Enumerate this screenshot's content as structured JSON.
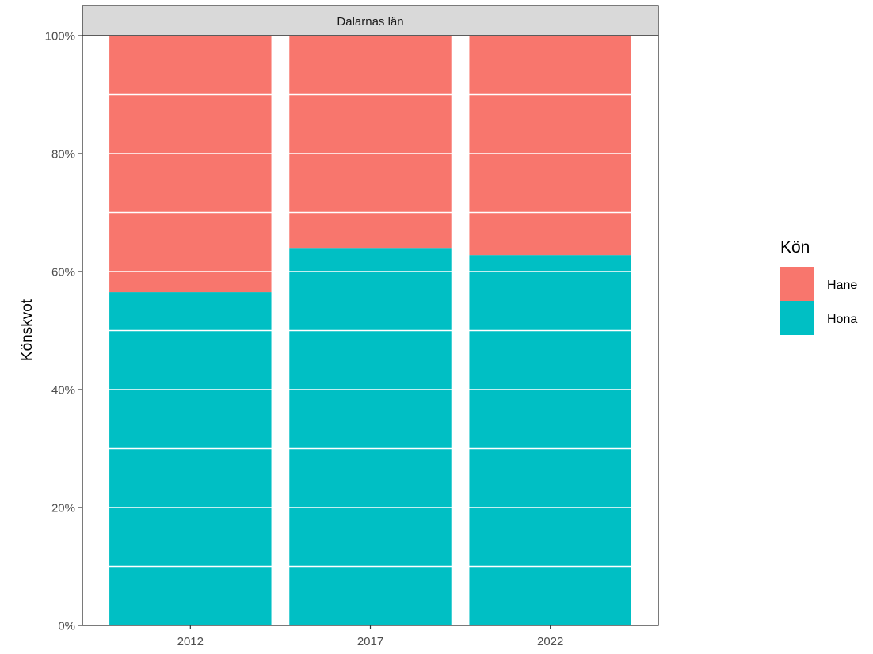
{
  "chart_data": {
    "type": "bar",
    "stacked": true,
    "percent_stacked": true,
    "facet_title": "Dalarnas län",
    "xlabel": "",
    "ylabel": "Könskvot",
    "categories": [
      "2012",
      "2017",
      "2022"
    ],
    "series": [
      {
        "name": "Hona",
        "color": "#00BFC4",
        "values": [
          0.565,
          0.64,
          0.628
        ]
      },
      {
        "name": "Hane",
        "color": "#F8766D",
        "values": [
          0.435,
          0.36,
          0.372
        ]
      }
    ],
    "ylim": [
      0,
      1
    ],
    "yticks": [
      0,
      0.2,
      0.4,
      0.6,
      0.8,
      1.0
    ],
    "ytick_labels": [
      "0%",
      "20%",
      "40%",
      "60%",
      "80%",
      "100%"
    ],
    "grid": "horizontal white lines every 10% drawn over bars",
    "legend": {
      "title": "Kön",
      "position": "right",
      "entries": [
        {
          "label": "Hane",
          "color": "#F8766D"
        },
        {
          "label": "Hona",
          "color": "#00BFC4"
        }
      ]
    }
  }
}
